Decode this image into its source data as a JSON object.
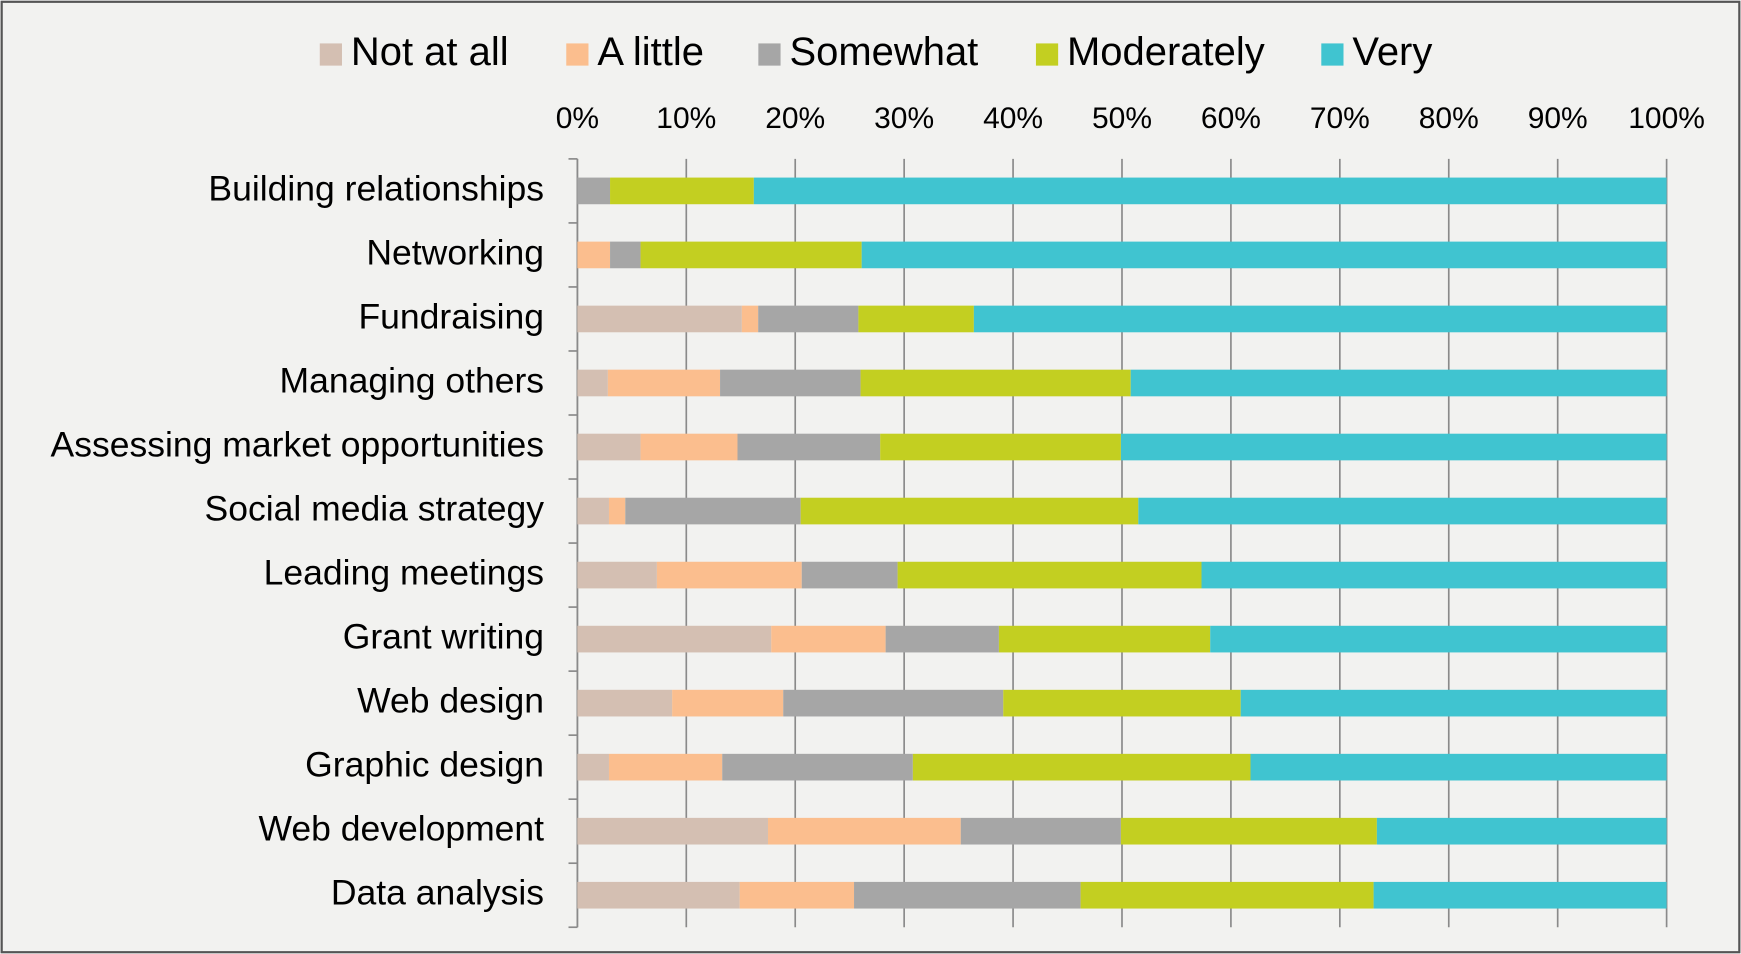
{
  "chart_data": {
    "type": "stacked_barh",
    "categories": [
      "Building relationships",
      "Networking",
      "Fundraising",
      "Managing others",
      "Assessing market opportunities",
      "Social media strategy",
      "Leading meetings",
      "Grant writing",
      "Web design",
      "Graphic design",
      "Web development",
      "Data analysis"
    ],
    "series": [
      {
        "name": "Not at all",
        "color": "#d4bfb2",
        "values": [
          0,
          0,
          15.1,
          2.8,
          5.8,
          2.9,
          7.3,
          17.8,
          8.7,
          2.9,
          17.5,
          14.9
        ]
      },
      {
        "name": "A little",
        "color": "#fbbe8e",
        "values": [
          0,
          3.0,
          1.5,
          10.3,
          8.9,
          1.5,
          13.3,
          10.5,
          10.2,
          10.4,
          17.7,
          10.5
        ]
      },
      {
        "name": "Somewhat",
        "color": "#a6a6a6",
        "values": [
          3.0,
          2.8,
          9.2,
          12.9,
          13.1,
          16.1,
          8.8,
          10.4,
          20.2,
          17.5,
          14.7,
          20.8
        ]
      },
      {
        "name": "Moderately",
        "color": "#c3cf21",
        "values": [
          13.2,
          20.3,
          10.6,
          24.8,
          22.1,
          31.0,
          27.9,
          19.4,
          21.8,
          31.0,
          23.5,
          26.9
        ]
      },
      {
        "name": "Very",
        "color": "#40c4d0",
        "values": [
          83.8,
          73.9,
          63.6,
          49.2,
          50.1,
          48.5,
          42.7,
          41.9,
          39.1,
          38.2,
          26.6,
          26.9
        ]
      }
    ],
    "xlim": [
      0,
      100
    ],
    "xticks": [
      {
        "value": 0,
        "label": "0%"
      },
      {
        "value": 10,
        "label": "10%"
      },
      {
        "value": 20,
        "label": "20%"
      },
      {
        "value": 30,
        "label": "30%"
      },
      {
        "value": 40,
        "label": "40%"
      },
      {
        "value": 50,
        "label": "50%"
      },
      {
        "value": 60,
        "label": "60%"
      },
      {
        "value": 70,
        "label": "70%"
      },
      {
        "value": 80,
        "label": "80%"
      },
      {
        "value": 90,
        "label": "90%"
      },
      {
        "value": 100,
        "label": "100%"
      }
    ],
    "grid": true,
    "legend": "top"
  }
}
